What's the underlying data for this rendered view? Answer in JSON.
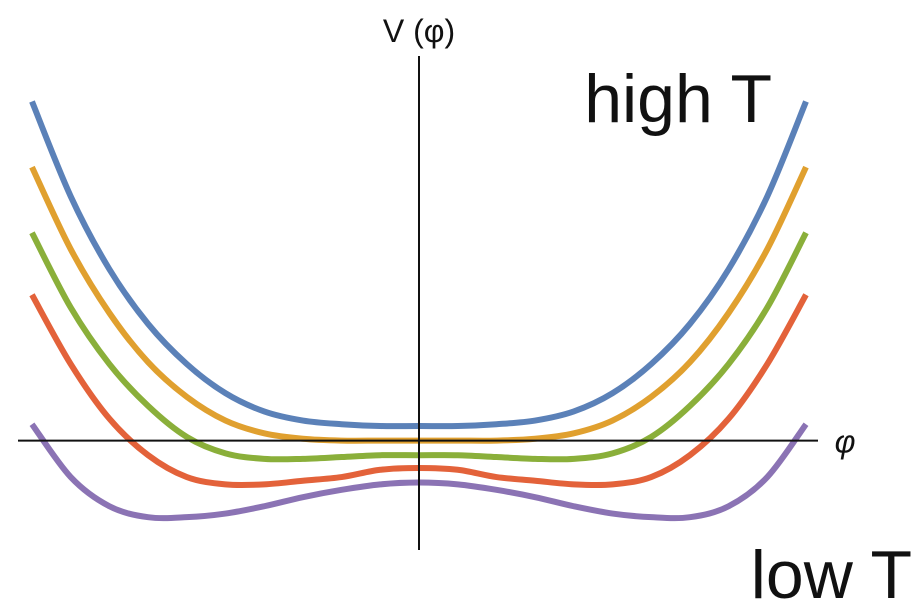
{
  "chart_data": {
    "type": "line",
    "xlabel": "φ",
    "ylabel": "V (φ)",
    "xlim": [
      -2.0,
      2.0
    ],
    "ylim": [
      -0.6,
      2.0
    ],
    "grid": false,
    "legend": "none",
    "annotations": {
      "top": "high T",
      "bottom": "low T"
    },
    "series": [
      {
        "color": "#5b81b8",
        "x": [
          -2.0,
          -1.8,
          -1.6,
          -1.4,
          -1.2,
          -1.0,
          -0.8,
          -0.6,
          -0.4,
          -0.2,
          0.0,
          0.2,
          0.4,
          0.6,
          0.8,
          1.0,
          1.2,
          1.4,
          1.6,
          1.8,
          2.0
        ],
        "y": [
          1.86,
          1.34,
          0.94,
          0.64,
          0.42,
          0.26,
          0.16,
          0.11,
          0.09,
          0.08,
          0.08,
          0.08,
          0.09,
          0.11,
          0.16,
          0.26,
          0.42,
          0.64,
          0.94,
          1.34,
          1.86
        ]
      },
      {
        "color": "#e0a02f",
        "x": [
          -2.0,
          -1.8,
          -1.6,
          -1.4,
          -1.2,
          -1.0,
          -0.8,
          -0.6,
          -0.4,
          -0.2,
          0.0,
          0.2,
          0.4,
          0.6,
          0.8,
          1.0,
          1.2,
          1.4,
          1.6,
          1.8,
          2.0
        ],
        "y": [
          1.5,
          1.05,
          0.7,
          0.43,
          0.24,
          0.11,
          0.04,
          0.01,
          0.0,
          0.0,
          0.0,
          0.0,
          0.0,
          0.01,
          0.04,
          0.11,
          0.24,
          0.43,
          0.7,
          1.05,
          1.5
        ]
      },
      {
        "color": "#8aaf3a",
        "x": [
          -2.0,
          -1.8,
          -1.6,
          -1.4,
          -1.2,
          -1.0,
          -0.8,
          -0.6,
          -0.4,
          -0.2,
          0.0,
          0.2,
          0.4,
          0.6,
          0.8,
          1.0,
          1.2,
          1.4,
          1.6,
          1.8,
          2.0
        ],
        "y": [
          1.14,
          0.73,
          0.42,
          0.19,
          0.02,
          -0.07,
          -0.1,
          -0.1,
          -0.09,
          -0.08,
          -0.08,
          -0.08,
          -0.09,
          -0.1,
          -0.1,
          -0.07,
          0.02,
          0.19,
          0.42,
          0.73,
          1.14
        ]
      },
      {
        "color": "#e3623a",
        "x": [
          -2.0,
          -1.8,
          -1.6,
          -1.4,
          -1.2,
          -1.0,
          -0.8,
          -0.6,
          -0.4,
          -0.2,
          0.0,
          0.2,
          0.4,
          0.6,
          0.8,
          1.0,
          1.2,
          1.4,
          1.6,
          1.8,
          2.0
        ],
        "y": [
          0.8,
          0.42,
          0.12,
          -0.08,
          -0.2,
          -0.24,
          -0.24,
          -0.22,
          -0.2,
          -0.16,
          -0.15,
          -0.16,
          -0.2,
          -0.22,
          -0.24,
          -0.24,
          -0.2,
          -0.08,
          0.12,
          0.42,
          0.8
        ]
      },
      {
        "color": "#8b73b4",
        "x": [
          -2.0,
          -1.8,
          -1.6,
          -1.4,
          -1.2,
          -1.0,
          -0.8,
          -0.6,
          -0.4,
          -0.2,
          0.0,
          0.2,
          0.4,
          0.6,
          0.8,
          1.0,
          1.2,
          1.4,
          1.6,
          1.8,
          2.0
        ],
        "y": [
          0.09,
          -0.2,
          -0.36,
          -0.42,
          -0.42,
          -0.4,
          -0.36,
          -0.31,
          -0.27,
          -0.24,
          -0.23,
          -0.24,
          -0.27,
          -0.31,
          -0.36,
          -0.4,
          -0.42,
          -0.42,
          -0.36,
          -0.2,
          0.09
        ]
      }
    ]
  }
}
